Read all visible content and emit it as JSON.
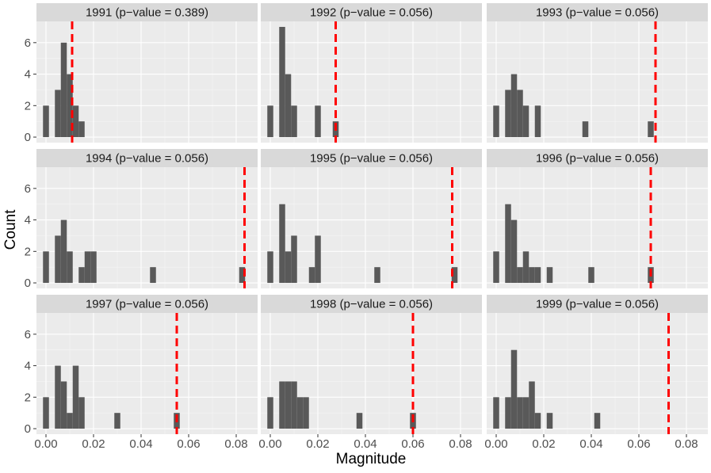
{
  "chart_data": {
    "type": "histogram",
    "xlabel": "Magnitude",
    "ylabel": "Count",
    "xlim": [
      -0.004,
      0.089
    ],
    "ylim": [
      -0.35,
      7.35
    ],
    "xticks": [
      {
        "value": 0,
        "label": "0.00"
      },
      {
        "value": 0.02,
        "label": "0.02"
      },
      {
        "value": 0.04,
        "label": "0.04"
      },
      {
        "value": 0.06,
        "label": "0.06"
      },
      {
        "value": 0.08,
        "label": "0.08"
      }
    ],
    "yticks": [
      0,
      2,
      4,
      6
    ],
    "grid": true,
    "color": "#595959",
    "line_color": "#ff0000",
    "bins": [
      -0.00125,
      0.00125,
      0.00375,
      0.00625,
      0.00875,
      0.01125,
      0.01375,
      0.01625,
      0.01875,
      0.02125,
      0.02375,
      0.02625,
      0.02875,
      0.03125,
      0.03375,
      0.03625,
      0.03875,
      0.04125,
      0.04375,
      0.04625,
      0.04875,
      0.05125,
      0.05375,
      0.05625,
      0.05875,
      0.06125,
      0.06375,
      0.06625,
      0.06875,
      0.07125,
      0.07375,
      0.07625,
      0.07875,
      0.08125,
      0.08375,
      0.08625
    ],
    "panels": [
      {
        "title": "1991 (p−value = 0.389)",
        "vline": 0.011,
        "counts": [
          2,
          0,
          3,
          6,
          4,
          2,
          1,
          0,
          0,
          0,
          0,
          0,
          0,
          0,
          0,
          0,
          0,
          0,
          0,
          0,
          0,
          0,
          0,
          0,
          0,
          0,
          0,
          0,
          0,
          0,
          0,
          0,
          0,
          0,
          0
        ]
      },
      {
        "title": "1992 (p−value = 0.056)",
        "vline": 0.0275,
        "counts": [
          2,
          0,
          7,
          4,
          2,
          0,
          0,
          0,
          2,
          0,
          0,
          1,
          0,
          0,
          0,
          0,
          0,
          0,
          0,
          0,
          0,
          0,
          0,
          0,
          0,
          0,
          0,
          0,
          0,
          0,
          0,
          0,
          0,
          0,
          0
        ]
      },
      {
        "title": "1993 (p−value = 0.056)",
        "vline": 0.067,
        "counts": [
          2,
          0,
          3,
          4,
          3,
          2,
          0,
          2,
          0,
          0,
          0,
          0,
          0,
          0,
          0,
          1,
          0,
          0,
          0,
          0,
          0,
          0,
          0,
          0,
          0,
          0,
          1,
          0,
          0,
          0,
          0,
          0,
          0,
          0,
          0
        ]
      },
      {
        "title": "1994 (p−value = 0.056)",
        "vline": 0.0835,
        "counts": [
          2,
          0,
          3,
          4,
          2,
          0,
          1,
          2,
          2,
          0,
          0,
          0,
          0,
          0,
          0,
          0,
          0,
          0,
          1,
          0,
          0,
          0,
          0,
          0,
          0,
          0,
          0,
          0,
          0,
          0,
          0,
          0,
          0,
          1,
          0
        ]
      },
      {
        "title": "1995 (p−value = 0.056)",
        "vline": 0.0765,
        "counts": [
          2,
          0,
          5,
          2,
          3,
          0,
          0,
          1,
          3,
          0,
          0,
          0,
          0,
          0,
          0,
          0,
          0,
          0,
          1,
          0,
          0,
          0,
          0,
          0,
          0,
          0,
          0,
          0,
          0,
          0,
          0,
          1,
          0,
          0,
          0
        ]
      },
      {
        "title": "1996 (p−value = 0.056)",
        "vline": 0.065,
        "counts": [
          2,
          0,
          5,
          4,
          1,
          2,
          1,
          1,
          0,
          1,
          0,
          0,
          0,
          0,
          0,
          0,
          1,
          0,
          0,
          0,
          0,
          0,
          0,
          0,
          0,
          0,
          1,
          0,
          0,
          0,
          0,
          0,
          0,
          0,
          0
        ]
      },
      {
        "title": "1997 (p−value = 0.056)",
        "vline": 0.055,
        "counts": [
          2,
          0,
          4,
          3,
          1,
          4,
          2,
          0,
          0,
          0,
          0,
          0,
          1,
          0,
          0,
          0,
          0,
          0,
          0,
          0,
          0,
          0,
          1,
          0,
          0,
          0,
          0,
          0,
          0,
          0,
          0,
          0,
          0,
          0,
          0
        ]
      },
      {
        "title": "1998 (p−value = 0.056)",
        "vline": 0.06,
        "counts": [
          2,
          0,
          3,
          3,
          3,
          2,
          2,
          0,
          0,
          0,
          0,
          0,
          0,
          0,
          0,
          1,
          0,
          0,
          0,
          0,
          0,
          0,
          0,
          0,
          1,
          0,
          0,
          0,
          0,
          0,
          0,
          0,
          0,
          0,
          0
        ]
      },
      {
        "title": "1999 (p−value = 0.056)",
        "vline": 0.0725,
        "counts": [
          2,
          0,
          2,
          5,
          2,
          2,
          3,
          1,
          0,
          1,
          0,
          0,
          0,
          0,
          0,
          0,
          0,
          1,
          0,
          0,
          0,
          0,
          0,
          0,
          0,
          0,
          0,
          0,
          0,
          0,
          0,
          0,
          0,
          0,
          0
        ]
      }
    ]
  }
}
